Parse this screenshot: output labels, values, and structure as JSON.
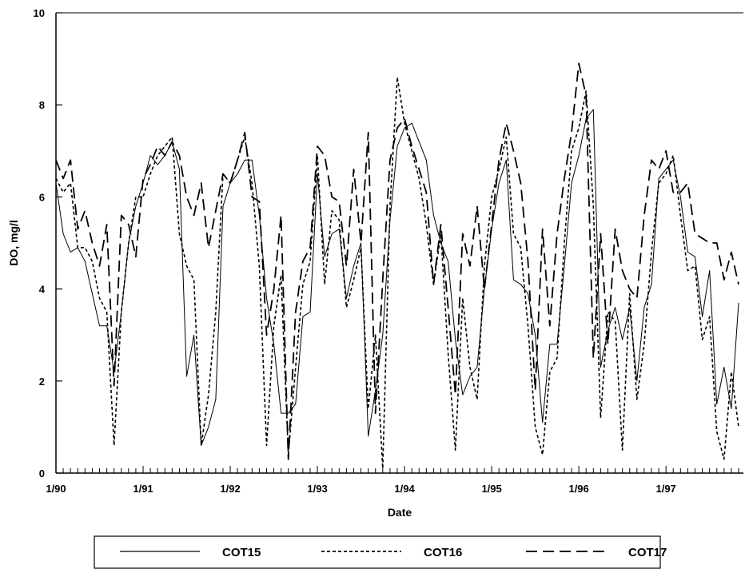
{
  "chart_data": {
    "type": "line",
    "xlabel": "Date",
    "ylabel": "DO, mg/l",
    "ylim": [
      0,
      10
    ],
    "xlim": [
      "1990-01",
      "1997-11"
    ],
    "y_ticks": [
      0,
      2,
      4,
      6,
      8,
      10
    ],
    "x_ticks": [
      {
        "value": "1990-01",
        "label": "1/90"
      },
      {
        "value": "1991-01",
        "label": "1/91"
      },
      {
        "value": "1992-01",
        "label": "1/92"
      },
      {
        "value": "1993-01",
        "label": "1/93"
      },
      {
        "value": "1994-01",
        "label": "1/94"
      },
      {
        "value": "1995-01",
        "label": "1/95"
      },
      {
        "value": "1996-01",
        "label": "1/96"
      },
      {
        "value": "1997-01",
        "label": "1/97"
      }
    ],
    "grid": false,
    "legend": {
      "placement": "bottom"
    },
    "series": [
      {
        "name": "COT15",
        "style": "solid",
        "color": "#000000",
        "points": [
          [
            "1990-01",
            6.3
          ],
          [
            "1990-02",
            5.2
          ],
          [
            "1990-03",
            4.8
          ],
          [
            "1990-04",
            4.9
          ],
          [
            "1990-05",
            4.6
          ],
          [
            "1990-06",
            3.9
          ],
          [
            "1990-07",
            3.2
          ],
          [
            "1990-08",
            3.2
          ],
          [
            "1990-09",
            2.2
          ],
          [
            "1990-10",
            3.5
          ],
          [
            "1990-11",
            5.0
          ],
          [
            "1990-12",
            5.8
          ],
          [
            "1991-01",
            6.3
          ],
          [
            "1991-02",
            6.9
          ],
          [
            "1991-03",
            6.7
          ],
          [
            "1991-04",
            6.9
          ],
          [
            "1991-05",
            7.2
          ],
          [
            "1991-06",
            6.6
          ],
          [
            "1991-07",
            2.1
          ],
          [
            "1991-08",
            3.0
          ],
          [
            "1991-09",
            0.6
          ],
          [
            "1991-10",
            1.0
          ],
          [
            "1991-11",
            1.6
          ],
          [
            "1991-12",
            5.8
          ],
          [
            "1992-01",
            6.3
          ],
          [
            "1992-02",
            6.5
          ],
          [
            "1992-03",
            6.8
          ],
          [
            "1992-04",
            6.8
          ],
          [
            "1992-05",
            5.6
          ],
          [
            "1992-06",
            3.8
          ],
          [
            "1992-07",
            2.8
          ],
          [
            "1992-08",
            1.3
          ],
          [
            "1992-09",
            1.3
          ],
          [
            "1992-10",
            1.5
          ],
          [
            "1992-11",
            3.4
          ],
          [
            "1992-12",
            3.5
          ],
          [
            "1993-01",
            6.5
          ],
          [
            "1993-02",
            4.7
          ],
          [
            "1993-03",
            5.2
          ],
          [
            "1993-04",
            5.3
          ],
          [
            "1993-05",
            3.8
          ],
          [
            "1993-06",
            4.5
          ],
          [
            "1993-07",
            5.0
          ],
          [
            "1993-08",
            0.8
          ],
          [
            "1993-09",
            1.8
          ],
          [
            "1993-10",
            3.0
          ],
          [
            "1993-11",
            5.5
          ],
          [
            "1993-12",
            7.1
          ],
          [
            "1994-01",
            7.5
          ],
          [
            "1994-02",
            7.6
          ],
          [
            "1994-03",
            7.2
          ],
          [
            "1994-04",
            6.8
          ],
          [
            "1994-05",
            5.6
          ],
          [
            "1994-06",
            5.0
          ],
          [
            "1994-07",
            4.6
          ],
          [
            "1994-08",
            2.9
          ],
          [
            "1994-09",
            1.7
          ],
          [
            "1994-10",
            2.1
          ],
          [
            "1994-11",
            2.3
          ],
          [
            "1994-12",
            4.0
          ],
          [
            "1995-01",
            5.3
          ],
          [
            "1995-02",
            6.3
          ],
          [
            "1995-03",
            6.8
          ],
          [
            "1995-04",
            4.2
          ],
          [
            "1995-05",
            4.1
          ],
          [
            "1995-06",
            3.9
          ],
          [
            "1995-07",
            3.0
          ],
          [
            "1995-08",
            1.1
          ],
          [
            "1995-09",
            2.8
          ],
          [
            "1995-10",
            2.8
          ],
          [
            "1995-11",
            4.5
          ],
          [
            "1995-12",
            6.3
          ],
          [
            "1996-01",
            6.9
          ],
          [
            "1996-02",
            7.7
          ],
          [
            "1996-03",
            7.9
          ],
          [
            "1996-04",
            2.3
          ],
          [
            "1996-05",
            3.1
          ],
          [
            "1996-06",
            3.6
          ],
          [
            "1996-07",
            2.9
          ],
          [
            "1996-08",
            3.6
          ],
          [
            "1996-09",
            2.0
          ],
          [
            "1996-10",
            3.6
          ],
          [
            "1996-11",
            4.1
          ],
          [
            "1996-12",
            6.4
          ],
          [
            "1997-01",
            6.6
          ],
          [
            "1997-02",
            6.8
          ],
          [
            "1997-03",
            6.0
          ],
          [
            "1997-04",
            4.8
          ],
          [
            "1997-05",
            4.7
          ],
          [
            "1997-06",
            3.4
          ],
          [
            "1997-07",
            4.4
          ],
          [
            "1997-08",
            1.5
          ],
          [
            "1997-09",
            2.3
          ],
          [
            "1997-10",
            1.4
          ],
          [
            "1997-11",
            3.7
          ]
        ]
      },
      {
        "name": "COT16",
        "style": "dotted",
        "color": "#000000",
        "points": [
          [
            "1990-01",
            6.4
          ],
          [
            "1990-02",
            6.1
          ],
          [
            "1990-03",
            6.3
          ],
          [
            "1990-04",
            4.9
          ],
          [
            "1990-05",
            4.9
          ],
          [
            "1990-06",
            4.6
          ],
          [
            "1990-07",
            3.8
          ],
          [
            "1990-08",
            3.5
          ],
          [
            "1990-09",
            0.6
          ],
          [
            "1990-10",
            3.5
          ],
          [
            "1990-11",
            5.0
          ],
          [
            "1990-12",
            6.0
          ],
          [
            "1991-01",
            6.0
          ],
          [
            "1991-02",
            6.5
          ],
          [
            "1991-03",
            6.9
          ],
          [
            "1991-04",
            7.1
          ],
          [
            "1991-05",
            7.3
          ],
          [
            "1991-06",
            5.2
          ],
          [
            "1991-07",
            4.5
          ],
          [
            "1991-08",
            4.2
          ],
          [
            "1991-09",
            0.6
          ],
          [
            "1991-10",
            1.7
          ],
          [
            "1991-11",
            3.5
          ],
          [
            "1991-12",
            6.5
          ],
          [
            "1992-01",
            6.3
          ],
          [
            "1992-02",
            6.8
          ],
          [
            "1992-03",
            7.3
          ],
          [
            "1992-04",
            6.3
          ],
          [
            "1992-05",
            4.5
          ],
          [
            "1992-06",
            0.6
          ],
          [
            "1992-07",
            3.2
          ],
          [
            "1992-08",
            4.3
          ],
          [
            "1992-09",
            0.4
          ],
          [
            "1992-10",
            2.3
          ],
          [
            "1992-11",
            4.1
          ],
          [
            "1992-12",
            4.6
          ],
          [
            "1993-01",
            6.9
          ],
          [
            "1993-02",
            4.1
          ],
          [
            "1993-03",
            5.7
          ],
          [
            "1993-04",
            5.5
          ],
          [
            "1993-05",
            3.6
          ],
          [
            "1993-06",
            4.2
          ],
          [
            "1993-07",
            4.9
          ],
          [
            "1993-08",
            1.4
          ],
          [
            "1993-09",
            3.0
          ],
          [
            "1993-10",
            0.1
          ],
          [
            "1993-11",
            5.8
          ],
          [
            "1993-12",
            8.6
          ],
          [
            "1994-01",
            7.6
          ],
          [
            "1994-02",
            7.0
          ],
          [
            "1994-03",
            6.4
          ],
          [
            "1994-04",
            5.4
          ],
          [
            "1994-05",
            4.1
          ],
          [
            "1994-06",
            5.2
          ],
          [
            "1994-07",
            2.6
          ],
          [
            "1994-08",
            0.5
          ],
          [
            "1994-09",
            3.8
          ],
          [
            "1994-10",
            2.3
          ],
          [
            "1994-11",
            1.6
          ],
          [
            "1994-12",
            4.5
          ],
          [
            "1995-01",
            6.0
          ],
          [
            "1995-02",
            6.6
          ],
          [
            "1995-03",
            7.3
          ],
          [
            "1995-04",
            5.2
          ],
          [
            "1995-05",
            4.9
          ],
          [
            "1995-06",
            3.2
          ],
          [
            "1995-07",
            1.0
          ],
          [
            "1995-08",
            0.4
          ],
          [
            "1995-09",
            2.2
          ],
          [
            "1995-10",
            2.5
          ],
          [
            "1995-11",
            5.0
          ],
          [
            "1995-12",
            7.0
          ],
          [
            "1996-01",
            7.5
          ],
          [
            "1996-02",
            8.3
          ],
          [
            "1996-03",
            5.8
          ],
          [
            "1996-04",
            1.2
          ],
          [
            "1996-05",
            3.5
          ],
          [
            "1996-06",
            3.3
          ],
          [
            "1996-07",
            0.5
          ],
          [
            "1996-08",
            3.9
          ],
          [
            "1996-09",
            1.6
          ],
          [
            "1996-10",
            2.8
          ],
          [
            "1996-11",
            4.8
          ],
          [
            "1996-12",
            6.3
          ],
          [
            "1997-01",
            6.5
          ],
          [
            "1997-02",
            6.9
          ],
          [
            "1997-03",
            5.6
          ],
          [
            "1997-04",
            4.4
          ],
          [
            "1997-05",
            4.5
          ],
          [
            "1997-06",
            2.9
          ],
          [
            "1997-07",
            3.4
          ],
          [
            "1997-08",
            0.9
          ],
          [
            "1997-09",
            0.3
          ],
          [
            "1997-10",
            2.2
          ],
          [
            "1997-11",
            1.0
          ]
        ]
      },
      {
        "name": "COT17",
        "style": "dashed",
        "color": "#000000",
        "points": [
          [
            "1990-01",
            6.8
          ],
          [
            "1990-02",
            6.4
          ],
          [
            "1990-03",
            6.8
          ],
          [
            "1990-04",
            5.3
          ],
          [
            "1990-05",
            5.7
          ],
          [
            "1990-06",
            5.0
          ],
          [
            "1990-07",
            4.5
          ],
          [
            "1990-08",
            5.4
          ],
          [
            "1990-09",
            1.9
          ],
          [
            "1990-10",
            5.6
          ],
          [
            "1990-11",
            5.4
          ],
          [
            "1990-12",
            4.7
          ],
          [
            "1991-01",
            6.4
          ],
          [
            "1991-02",
            6.7
          ],
          [
            "1991-03",
            7.1
          ],
          [
            "1991-04",
            6.9
          ],
          [
            "1991-05",
            7.2
          ],
          [
            "1991-06",
            6.9
          ],
          [
            "1991-07",
            6.0
          ],
          [
            "1991-08",
            5.6
          ],
          [
            "1991-09",
            6.3
          ],
          [
            "1991-10",
            4.9
          ],
          [
            "1991-11",
            5.7
          ],
          [
            "1991-12",
            6.5
          ],
          [
            "1992-01",
            6.3
          ],
          [
            "1992-02",
            6.8
          ],
          [
            "1992-03",
            7.4
          ],
          [
            "1992-04",
            6.0
          ],
          [
            "1992-05",
            5.9
          ],
          [
            "1992-06",
            3.0
          ],
          [
            "1992-07",
            4.0
          ],
          [
            "1992-08",
            5.6
          ],
          [
            "1992-09",
            0.3
          ],
          [
            "1992-10",
            3.5
          ],
          [
            "1992-11",
            4.6
          ],
          [
            "1992-12",
            4.9
          ],
          [
            "1993-01",
            7.1
          ],
          [
            "1993-02",
            6.9
          ],
          [
            "1993-03",
            6.0
          ],
          [
            "1993-04",
            5.9
          ],
          [
            "1993-05",
            4.5
          ],
          [
            "1993-06",
            6.6
          ],
          [
            "1993-07",
            5.0
          ],
          [
            "1993-08",
            7.4
          ],
          [
            "1993-09",
            1.3
          ],
          [
            "1993-10",
            4.2
          ],
          [
            "1993-11",
            6.8
          ],
          [
            "1993-12",
            7.5
          ],
          [
            "1994-01",
            7.7
          ],
          [
            "1994-02",
            7.1
          ],
          [
            "1994-03",
            6.6
          ],
          [
            "1994-04",
            6.1
          ],
          [
            "1994-05",
            4.1
          ],
          [
            "1994-06",
            5.4
          ],
          [
            "1994-07",
            3.6
          ],
          [
            "1994-08",
            1.7
          ],
          [
            "1994-09",
            5.2
          ],
          [
            "1994-10",
            4.5
          ],
          [
            "1994-11",
            5.8
          ],
          [
            "1994-12",
            4.0
          ],
          [
            "1995-01",
            5.4
          ],
          [
            "1995-02",
            6.8
          ],
          [
            "1995-03",
            7.6
          ],
          [
            "1995-04",
            7.0
          ],
          [
            "1995-05",
            6.3
          ],
          [
            "1995-06",
            4.6
          ],
          [
            "1995-07",
            1.8
          ],
          [
            "1995-08",
            5.3
          ],
          [
            "1995-09",
            3.2
          ],
          [
            "1995-10",
            5.2
          ],
          [
            "1995-11",
            6.4
          ],
          [
            "1995-12",
            7.4
          ],
          [
            "1996-01",
            8.9
          ],
          [
            "1996-02",
            8.2
          ],
          [
            "1996-03",
            2.5
          ],
          [
            "1996-04",
            5.2
          ],
          [
            "1996-05",
            2.8
          ],
          [
            "1996-06",
            5.3
          ],
          [
            "1996-07",
            4.4
          ],
          [
            "1996-08",
            4.0
          ],
          [
            "1996-09",
            3.8
          ],
          [
            "1996-10",
            5.6
          ],
          [
            "1996-11",
            6.8
          ],
          [
            "1996-12",
            6.6
          ],
          [
            "1997-01",
            7.0
          ],
          [
            "1997-02",
            6.1
          ],
          [
            "1997-03",
            6.1
          ],
          [
            "1997-04",
            6.3
          ],
          [
            "1997-05",
            5.2
          ],
          [
            "1997-06",
            5.1
          ],
          [
            "1997-07",
            5.0
          ],
          [
            "1997-08",
            5.0
          ],
          [
            "1997-09",
            4.2
          ],
          [
            "1997-10",
            4.8
          ],
          [
            "1997-11",
            4.1
          ]
        ]
      }
    ]
  }
}
